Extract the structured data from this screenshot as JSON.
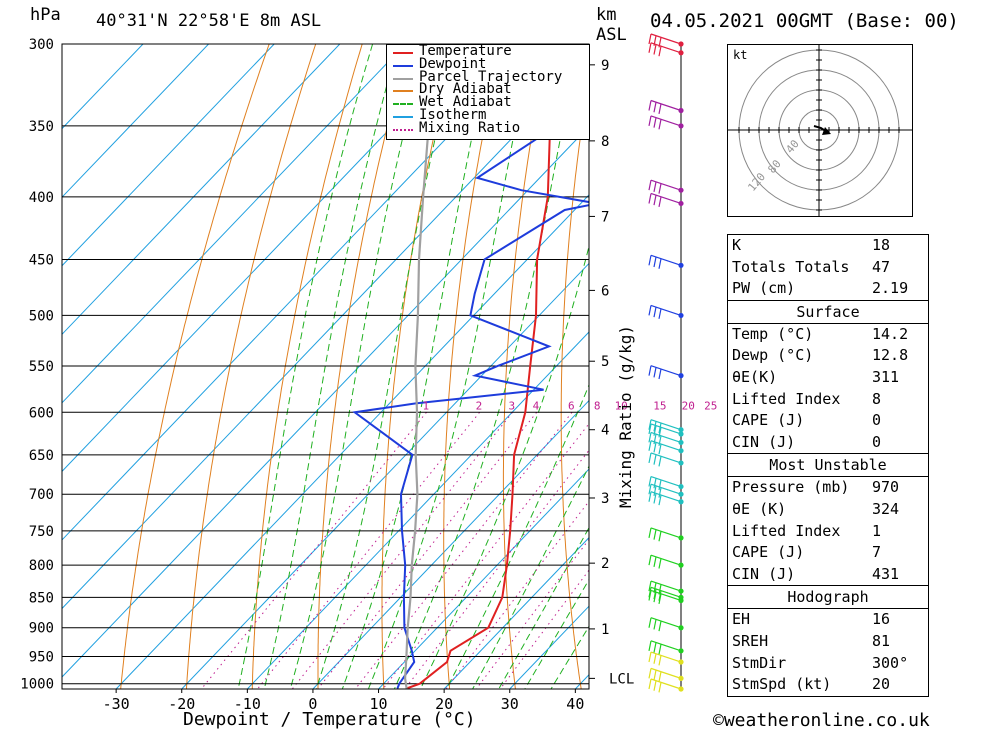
{
  "header": {
    "pressure_unit": "hPa",
    "location": "40°31'N 22°58'E 8m ASL",
    "height_unit_line1": "km",
    "height_unit_line2": "ASL",
    "datetime": "04.05.2021 00GMT (Base: 00)"
  },
  "chart_data": {
    "type": "line",
    "xlabel": "Dewpoint / Temperature (°C)",
    "ylabel_right": "Mixing Ratio (g/kg)",
    "x_ticks": [
      -30,
      -20,
      -10,
      0,
      10,
      20,
      30,
      40
    ],
    "pressure_levels": [
      300,
      350,
      400,
      450,
      500,
      550,
      600,
      650,
      700,
      750,
      800,
      850,
      900,
      950,
      1000
    ],
    "km_ticks": [
      {
        "km": 1,
        "p": 902
      },
      {
        "km": 2,
        "p": 797
      },
      {
        "km": 3,
        "p": 705
      },
      {
        "km": 4,
        "p": 620
      },
      {
        "km": 5,
        "p": 545
      },
      {
        "km": 6,
        "p": 477
      },
      {
        "km": 7,
        "p": 415
      },
      {
        "km": 8,
        "p": 360
      },
      {
        "km": 9,
        "p": 312
      }
    ],
    "lcl_label": "LCL",
    "lcl_pressure": 990,
    "mixing_ratio_labels": [
      "1",
      "2",
      "3",
      "4",
      "6",
      "8",
      "10",
      "15",
      "20",
      "25"
    ],
    "series": [
      {
        "name": "Temperature",
        "color": "#e02020",
        "points": [
          [
            1009,
            14.2
          ],
          [
            1000,
            15.5
          ],
          [
            960,
            16.5
          ],
          [
            940,
            15.4
          ],
          [
            900,
            17.8
          ],
          [
            850,
            15.5
          ],
          [
            800,
            11.5
          ],
          [
            750,
            7.0
          ],
          [
            700,
            2.0
          ],
          [
            650,
            -3.5
          ],
          [
            600,
            -8.0
          ],
          [
            550,
            -14.0
          ],
          [
            500,
            -20.5
          ],
          [
            450,
            -28.5
          ],
          [
            400,
            -36.0
          ],
          [
            350,
            -46.0
          ],
          [
            300,
            -56.5
          ]
        ]
      },
      {
        "name": "Dewpoint",
        "color": "#1e3cdc",
        "points": [
          [
            1009,
            12.8
          ],
          [
            1000,
            12.4
          ],
          [
            960,
            11.5
          ],
          [
            940,
            9.5
          ],
          [
            900,
            5.0
          ],
          [
            850,
            0.5
          ],
          [
            800,
            -4.0
          ],
          [
            750,
            -9.5
          ],
          [
            700,
            -15.0
          ],
          [
            650,
            -19.0
          ],
          [
            600,
            -34.0
          ],
          [
            590,
            -26.0
          ],
          [
            575,
            -8.5
          ],
          [
            560,
            -21.0
          ],
          [
            550,
            -19.0
          ],
          [
            530,
            -14.0
          ],
          [
            500,
            -30.5
          ],
          [
            480,
            -33.0
          ],
          [
            450,
            -36.5
          ],
          [
            410,
            -31.5
          ],
          [
            405,
            -27.5
          ],
          [
            395,
            -41.0
          ],
          [
            386,
            -49.5
          ],
          [
            300,
            -38.0
          ]
        ]
      },
      {
        "name": "Parcel Trajectory",
        "color": "#a0a0a0",
        "points": [
          [
            1009,
            14.2
          ],
          [
            990,
            12.5
          ],
          [
            950,
            9.5
          ],
          [
            900,
            5.5
          ],
          [
            850,
            1.5
          ],
          [
            800,
            -3.0
          ],
          [
            750,
            -7.5
          ],
          [
            700,
            -12.5
          ],
          [
            650,
            -18.5
          ],
          [
            600,
            -24.5
          ],
          [
            550,
            -31.5
          ],
          [
            500,
            -38.5
          ],
          [
            450,
            -46.5
          ],
          [
            400,
            -55.0
          ],
          [
            350,
            -64.5
          ],
          [
            320,
            -70.5
          ]
        ]
      }
    ],
    "legend": {
      "placement": "top-center",
      "entries": [
        {
          "label": "Temperature",
          "color": "#e02020",
          "style": "solid"
        },
        {
          "label": "Dewpoint",
          "color": "#1e3cdc",
          "style": "solid"
        },
        {
          "label": "Parcel Trajectory",
          "color": "#a0a0a0",
          "style": "solid"
        },
        {
          "label": "Dry Adiabat",
          "color": "#e08020",
          "style": "solid"
        },
        {
          "label": "Wet Adiabat",
          "color": "#20b020",
          "style": "dashed"
        },
        {
          "label": "Isotherm",
          "color": "#20a0e0",
          "style": "solid"
        },
        {
          "label": "Mixing Ratio",
          "color": "#c02090",
          "style": "dotted"
        }
      ]
    },
    "wind_barbs_color_by_height": [
      "#e0e020",
      "#20d020",
      "#20c0c0",
      "#2040e0",
      "#a020a0",
      "#e02040"
    ]
  },
  "hodograph": {
    "unit": "kt",
    "ring_labels": [
      "40",
      "80",
      "120"
    ]
  },
  "indices": {
    "rows": [
      {
        "key": "K",
        "value": "18"
      },
      {
        "key": "Totals Totals",
        "value": "47"
      },
      {
        "key": "PW (cm)",
        "value": "2.19"
      }
    ]
  },
  "surface": {
    "title": "Surface",
    "rows": [
      {
        "key": "Temp (°C)",
        "value": "14.2"
      },
      {
        "key": "Dewp (°C)",
        "value": "12.8"
      },
      {
        "key": "θE(K)",
        "value": "311"
      },
      {
        "key": "Lifted Index",
        "value": "8"
      },
      {
        "key": "CAPE (J)",
        "value": "0"
      },
      {
        "key": "CIN (J)",
        "value": "0"
      }
    ]
  },
  "most_unstable": {
    "title": "Most Unstable",
    "rows": [
      {
        "key": "Pressure (mb)",
        "value": "970"
      },
      {
        "key": "θE (K)",
        "value": "324"
      },
      {
        "key": "Lifted Index",
        "value": "1"
      },
      {
        "key": "CAPE (J)",
        "value": "7"
      },
      {
        "key": "CIN (J)",
        "value": "431"
      }
    ]
  },
  "hodograph_params": {
    "title": "Hodograph",
    "rows": [
      {
        "key": "EH",
        "value": "16"
      },
      {
        "key": "SREH",
        "value": "81"
      },
      {
        "key": "StmDir",
        "value": "300°"
      },
      {
        "key": "StmSpd (kt)",
        "value": "20"
      }
    ]
  },
  "footer": {
    "copyright": "©weatheronline.co.uk"
  }
}
